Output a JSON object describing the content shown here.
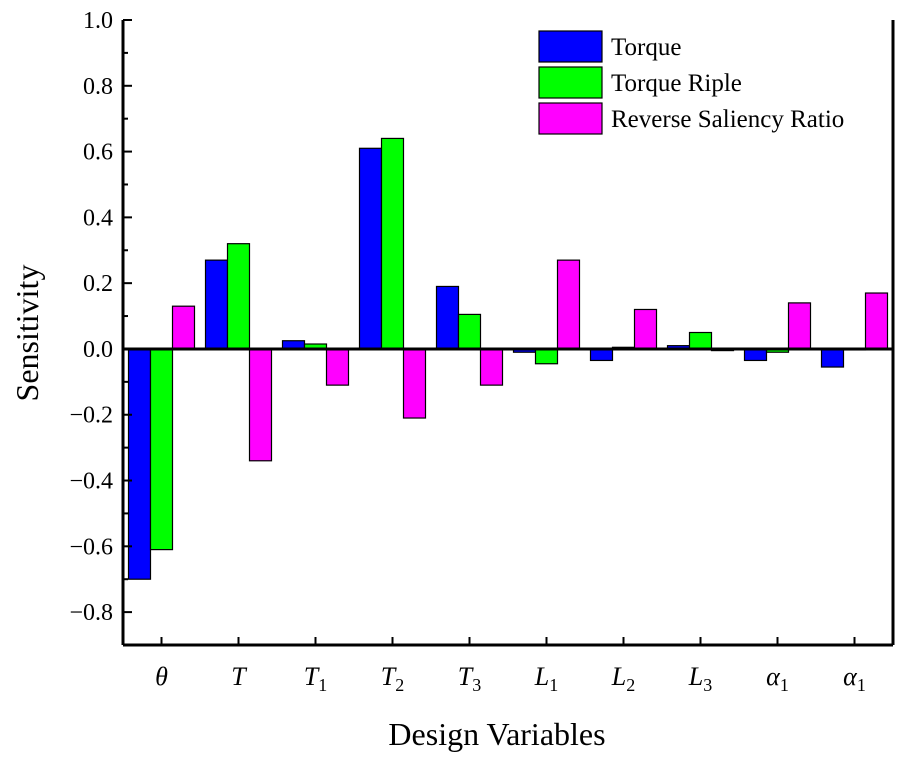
{
  "chart_data": {
    "type": "bar",
    "title": "",
    "xlabel": "Design Variables",
    "ylabel": "Sensitivity",
    "ylim": [
      -0.9,
      1.0
    ],
    "yticks": [
      -0.8,
      -0.6,
      -0.4,
      -0.2,
      0.0,
      0.2,
      0.4,
      0.6,
      0.8,
      1.0
    ],
    "ytick_labels": [
      "−0.8",
      "−0.6",
      "−0.4",
      "−0.2",
      "0.0",
      "0.2",
      "0.4",
      "0.6",
      "0.8",
      "1.0"
    ],
    "categories": [
      {
        "base": "θ",
        "sub": ""
      },
      {
        "base": "T",
        "sub": ""
      },
      {
        "base": "T",
        "sub": "1"
      },
      {
        "base": "T",
        "sub": "2"
      },
      {
        "base": "T",
        "sub": "3"
      },
      {
        "base": "L",
        "sub": "1"
      },
      {
        "base": "L",
        "sub": "2"
      },
      {
        "base": "L",
        "sub": "3"
      },
      {
        "base": "α",
        "sub": "1"
      },
      {
        "base": "α",
        "sub": "1"
      }
    ],
    "series": [
      {
        "name": "Torque",
        "color": "#0000ff",
        "values": [
          -0.7,
          0.27,
          0.025,
          0.61,
          0.19,
          -0.01,
          -0.035,
          0.01,
          -0.035,
          -0.055
        ]
      },
      {
        "name": "Torque Riple",
        "color": "#00ff00",
        "values": [
          -0.61,
          0.32,
          0.015,
          0.64,
          0.105,
          -0.045,
          0.005,
          0.05,
          -0.01,
          0.0
        ]
      },
      {
        "name": "Reverse Saliency Ratio",
        "color": "#ff00ff",
        "values": [
          0.13,
          -0.34,
          -0.11,
          -0.21,
          -0.11,
          0.27,
          0.12,
          -0.005,
          0.14,
          0.17
        ]
      }
    ],
    "grid": false,
    "legend_position": "top-right"
  }
}
